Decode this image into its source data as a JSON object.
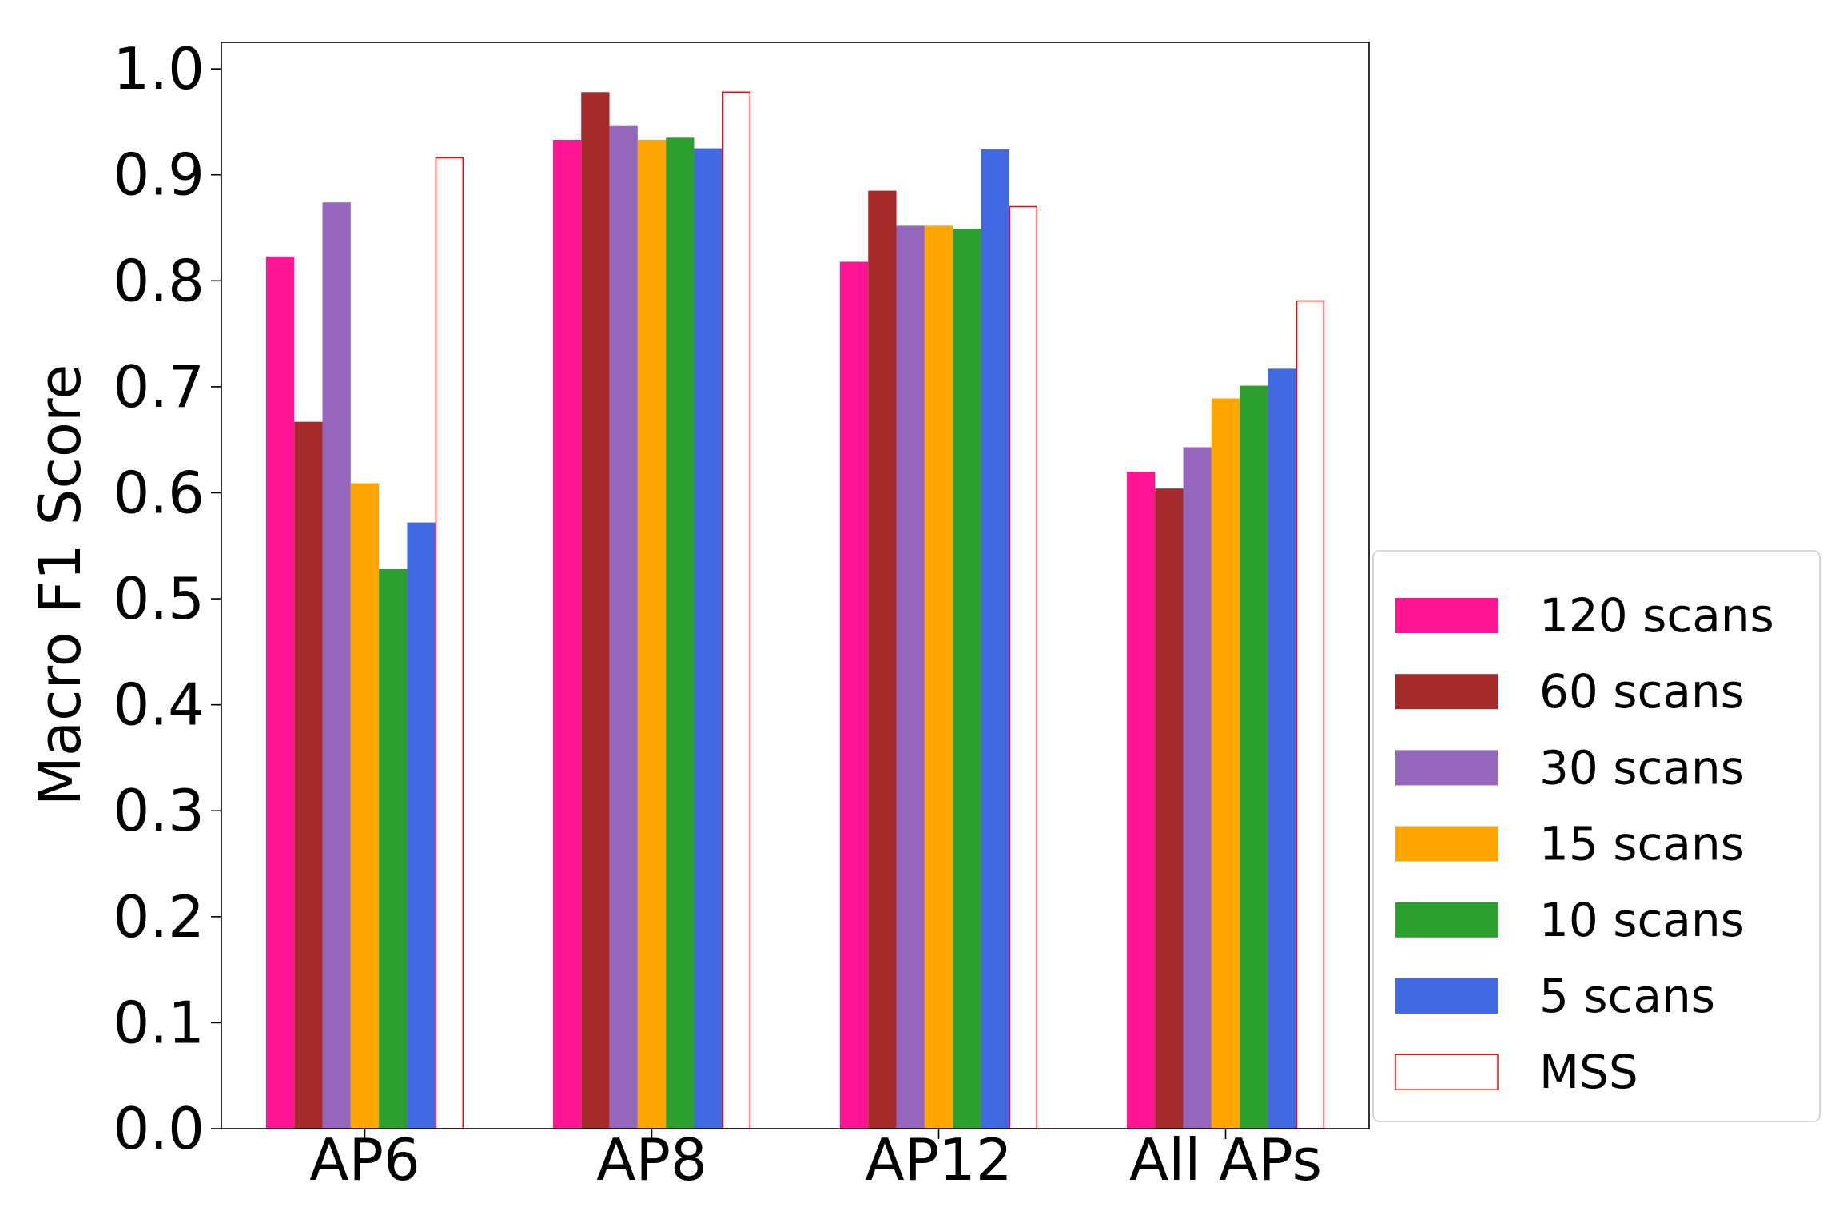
{
  "chart_data": {
    "type": "bar",
    "title": "",
    "xlabel": "",
    "ylabel": "Macro F1 Score",
    "ylim": [
      0,
      1.025
    ],
    "yticks": [
      "0.0",
      "0.1",
      "0.2",
      "0.3",
      "0.4",
      "0.5",
      "0.6",
      "0.7",
      "0.8",
      "0.9",
      "1.0"
    ],
    "categories": [
      "AP6",
      "AP8",
      "AP12",
      "All APs"
    ],
    "legend_position": "outside-right-bottom",
    "series": [
      {
        "name": "120 scans",
        "color": "#ff1493",
        "style": "filled",
        "values": [
          0.823,
          0.933,
          0.818,
          0.62
        ]
      },
      {
        "name": "60 scans",
        "color": "#a52a2a",
        "style": "filled",
        "values": [
          0.667,
          0.978,
          0.885,
          0.604
        ]
      },
      {
        "name": "30 scans",
        "color": "#9467bd",
        "style": "filled",
        "values": [
          0.874,
          0.946,
          0.852,
          0.643
        ]
      },
      {
        "name": "15 scans",
        "color": "#ffa500",
        "style": "filled",
        "values": [
          0.609,
          0.933,
          0.852,
          0.689
        ]
      },
      {
        "name": "10 scans",
        "color": "#2ca02c",
        "style": "filled",
        "values": [
          0.528,
          0.935,
          0.849,
          0.701
        ]
      },
      {
        "name": "5 scans",
        "color": "#4169e1",
        "style": "filled",
        "values": [
          0.572,
          0.925,
          0.924,
          0.717
        ]
      },
      {
        "name": "MSS",
        "color": "#ff0000",
        "style": "outline",
        "values": [
          0.916,
          0.978,
          0.87,
          0.781
        ]
      }
    ]
  }
}
